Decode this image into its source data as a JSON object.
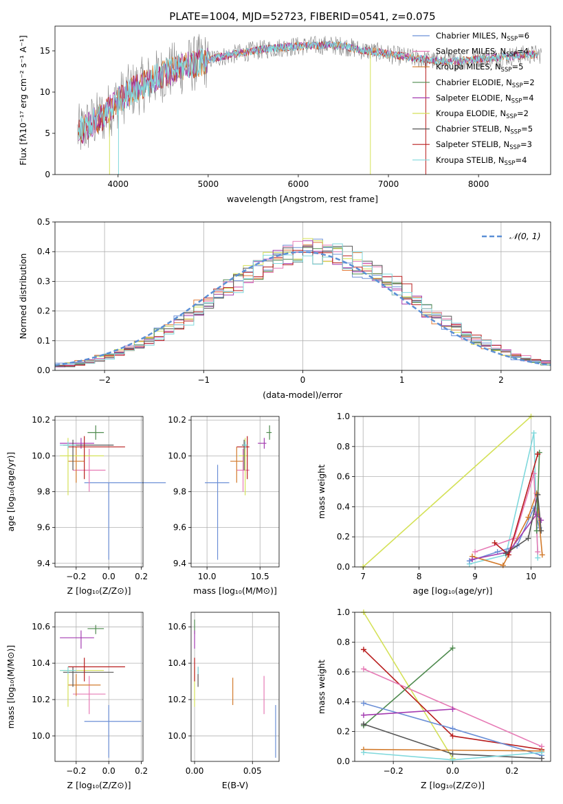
{
  "colors": {
    "chabrier_miles": "#6b8fd6",
    "salpeter_miles": "#e07b39",
    "kroupa_miles": "#d27a2b",
    "chabrier_elodie": "#4e8a4e",
    "salpeter_elodie": "#a33ab0",
    "kroupa_elodie": "#d4e157",
    "chabrier_stelib": "#555555",
    "salpeter_stelib": "#b81c1c",
    "kroupa_stelib": "#7fd8dc",
    "pink": "#e67ab5",
    "dashed_normal": "#5b8fd6"
  },
  "panel1": {
    "title": "PLATE=1004, MJD=52723, FIBERID=0541, z=0.075",
    "xlabel": "wavelength [Angstrom, rest frame]",
    "ylabel": "Flux [fλ10⁻¹⁷ erg cm⁻² s⁻¹ A⁻¹]",
    "xticks": [
      "4000",
      "5000",
      "6000",
      "7000",
      "8000"
    ],
    "yticks": [
      "0",
      "5",
      "10",
      "15"
    ],
    "legend": [
      {
        "label": "Chabrier MILES, N",
        "sub": "SSP",
        "tail": "=6",
        "color_key": "chabrier_miles"
      },
      {
        "label": "Salpeter MILES, N",
        "sub": "SSP",
        "tail": "=4",
        "color_key": "pink"
      },
      {
        "label": "Kroupa MILES, N",
        "sub": "SSP",
        "tail": "=5",
        "color_key": "kroupa_miles"
      },
      {
        "label": "Chabrier ELODIE, N",
        "sub": "SSP",
        "tail": "=2",
        "color_key": "chabrier_elodie"
      },
      {
        "label": "Salpeter ELODIE, N",
        "sub": "SSP",
        "tail": "=4",
        "color_key": "salpeter_elodie"
      },
      {
        "label": "Kroupa ELODIE, N",
        "sub": "SSP",
        "tail": "=2",
        "color_key": "kroupa_elodie"
      },
      {
        "label": "Chabrier STELIB, N",
        "sub": "SSP",
        "tail": "=5",
        "color_key": "chabrier_stelib"
      },
      {
        "label": "Salpeter STELIB, N",
        "sub": "SSP",
        "tail": "=3",
        "color_key": "salpeter_stelib"
      },
      {
        "label": "Kroupa STELIB, N",
        "sub": "SSP",
        "tail": "=4",
        "color_key": "kroupa_stelib"
      }
    ]
  },
  "panel2": {
    "xlabel": "(data-model)/error",
    "ylabel": "Normed distribution",
    "xticks": [
      "−2",
      "−1",
      "0",
      "1",
      "2"
    ],
    "yticks": [
      "0.0",
      "0.1",
      "0.2",
      "0.3",
      "0.4",
      "0.5"
    ],
    "legend_label": "𝒩(0, 1)"
  },
  "panel3": {
    "xlabel": "Z [log₁₀(Z/Z⊙)]",
    "ylabel": "age  [log₁₀(age/yr)]",
    "xticks": [
      "−0.2",
      "0.0",
      "0.2"
    ],
    "yticks": [
      "9.4",
      "9.6",
      "9.8",
      "10.0",
      "10.2"
    ]
  },
  "panel4": {
    "xlabel": "mass [log₁₀(M/M⊙)]",
    "xticks": [
      "10.0",
      "10.5"
    ],
    "yticks": [
      "9.4",
      "9.6",
      "9.8",
      "10.0",
      "10.2"
    ]
  },
  "panel5": {
    "xlabel": "age  [log₁₀(age/yr)]",
    "ylabel": "mass weight",
    "xticks": [
      "7",
      "8",
      "9",
      "10"
    ],
    "yticks": [
      "0.0",
      "0.2",
      "0.4",
      "0.6",
      "0.8",
      "1.0"
    ]
  },
  "panel6": {
    "xlabel": "Z [log₁₀(Z/Z⊙)]",
    "ylabel": "mass [log₁₀(M/M⊙)]",
    "xticks": [
      "−0.2",
      "0.0",
      "0.2"
    ],
    "yticks": [
      "10.0",
      "10.2",
      "10.4",
      "10.6"
    ]
  },
  "panel7": {
    "xlabel": "E(B-V)",
    "xticks": [
      "0.00",
      "0.05"
    ],
    "yticks": [
      "10.0",
      "10.2",
      "10.4",
      "10.6"
    ]
  },
  "panel8": {
    "xlabel": "Z [log₁₀(Z/Z⊙)]",
    "ylabel": "mass weight",
    "xticks": [
      "−0.2",
      "0.0",
      "0.2"
    ],
    "yticks": [
      "0.0",
      "0.2",
      "0.4",
      "0.6",
      "0.8",
      "1.0"
    ]
  },
  "chart_data": [
    {
      "type": "line",
      "title": "PLATE=1004, MJD=52723, FIBERID=0541, z=0.075",
      "xlabel": "wavelength [Angstrom, rest frame]",
      "xlim": [
        3300,
        8800
      ],
      "ylim": [
        0,
        18
      ],
      "grid": false,
      "legend": "top-right",
      "continuum": {
        "x": [
          3550,
          3700,
          3850,
          4000,
          4150,
          4300,
          4500,
          4700,
          4900,
          5100,
          5300,
          5500,
          5700,
          5900,
          6100,
          6300,
          6500,
          6700,
          6900,
          7100,
          7300,
          7500,
          7700,
          7900,
          8100,
          8300,
          8500,
          8700
        ],
        "y": [
          5.0,
          6.2,
          7.2,
          9.0,
          10.2,
          11.0,
          12.2,
          13.0,
          13.6,
          14.2,
          14.6,
          15.0,
          15.3,
          15.5,
          15.6,
          15.7,
          15.6,
          15.1,
          14.8,
          14.4,
          14.1,
          13.8,
          13.7,
          13.9,
          14.1,
          14.3,
          14.5,
          14.6
        ]
      }
    },
    {
      "type": "bar",
      "title": "",
      "xlabel": "(data-model)/error",
      "ylabel": "Normed distribution",
      "xlim": [
        -2.5,
        2.5
      ],
      "ylim": [
        0,
        0.5
      ],
      "grid": true,
      "legend": "top-right",
      "bin_width": 0.1,
      "reference": {
        "name": "𝒩(0, 1)",
        "mean": 0,
        "sigma": 1
      }
    },
    {
      "type": "scatter",
      "xlabel": "Z [log₁₀(Z/Z⊙)]",
      "ylabel": "age  [log₁₀(age/yr)]",
      "xlim": [
        -0.33,
        0.21
      ],
      "ylim": [
        9.38,
        10.22
      ],
      "grid": true,
      "points": [
        {
          "color_key": "chabrier_miles",
          "x": 0.0,
          "xerr": [
            0.15,
            0.35
          ],
          "y": 9.85,
          "yerr": [
            0.43,
            0.0
          ]
        },
        {
          "color_key": "pink",
          "x": -0.12,
          "xerr": [
            0.1,
            0.1
          ],
          "y": 9.92,
          "yerr": [
            0.12,
            0.12
          ]
        },
        {
          "color_key": "kroupa_miles",
          "x": -0.2,
          "xerr": [
            0.05,
            0.05
          ],
          "y": 9.97,
          "yerr": [
            0.12,
            0.08
          ]
        },
        {
          "color_key": "chabrier_elodie",
          "x": -0.08,
          "xerr": [
            0.05,
            0.05
          ],
          "y": 10.13,
          "yerr": [
            0.04,
            0.04
          ]
        },
        {
          "color_key": "salpeter_elodie",
          "x": -0.17,
          "xerr": [
            0.13,
            0.08
          ],
          "y": 10.07,
          "yerr": [
            0.03,
            0.03
          ]
        },
        {
          "color_key": "kroupa_elodie",
          "x": -0.25,
          "xerr": [
            0.05,
            0.22
          ],
          "y": 10.0,
          "yerr": [
            0.22,
            0.1
          ]
        },
        {
          "color_key": "chabrier_stelib",
          "x": -0.22,
          "xerr": [
            0.06,
            0.25
          ],
          "y": 10.06,
          "yerr": [
            0.14,
            0.03
          ]
        },
        {
          "color_key": "salpeter_stelib",
          "x": -0.15,
          "xerr": [
            0.1,
            0.25
          ],
          "y": 10.05,
          "yerr": [
            0.18,
            0.06
          ]
        },
        {
          "color_key": "kroupa_stelib",
          "x": -0.25,
          "xerr": [
            0.05,
            0.05
          ],
          "y": 10.06,
          "yerr": [
            0.02,
            0.02
          ]
        }
      ]
    },
    {
      "type": "scatter",
      "xlabel": "mass [log₁₀(M/M⊙)]",
      "xlim": [
        9.85,
        10.68
      ],
      "ylim": [
        9.38,
        10.22
      ],
      "grid": true,
      "points": [
        {
          "color_key": "chabrier_miles",
          "x": 10.1,
          "xerr": [
            0.12,
            0.11
          ],
          "y": 9.85,
          "yerr": [
            0.43,
            0.1
          ]
        },
        {
          "color_key": "pink",
          "x": 10.34,
          "xerr": [
            0.06,
            0.06
          ],
          "y": 9.92,
          "yerr": [
            0.12,
            0.12
          ]
        },
        {
          "color_key": "kroupa_miles",
          "x": 10.28,
          "xerr": [
            0.06,
            0.06
          ],
          "y": 9.97,
          "yerr": [
            0.12,
            0.08
          ]
        },
        {
          "color_key": "chabrier_elodie",
          "x": 10.59,
          "xerr": [
            0.03,
            0.02
          ],
          "y": 10.13,
          "yerr": [
            0.04,
            0.04
          ]
        },
        {
          "color_key": "salpeter_elodie",
          "x": 10.54,
          "xerr": [
            0.06,
            0.02
          ],
          "y": 10.07,
          "yerr": [
            0.03,
            0.03
          ]
        },
        {
          "color_key": "kroupa_elodie",
          "x": 10.36,
          "xerr": [
            0.06,
            0.02
          ],
          "y": 10.0,
          "yerr": [
            0.22,
            0.1
          ]
        },
        {
          "color_key": "chabrier_stelib",
          "x": 10.35,
          "xerr": [
            0.02,
            0.03
          ],
          "y": 10.06,
          "yerr": [
            0.14,
            0.03
          ]
        },
        {
          "color_key": "salpeter_stelib",
          "x": 10.38,
          "xerr": [
            0.1,
            0.02
          ],
          "y": 10.05,
          "yerr": [
            0.18,
            0.06
          ]
        },
        {
          "color_key": "kroupa_stelib",
          "x": 10.36,
          "xerr": [
            0.02,
            0.02
          ],
          "y": 10.06,
          "yerr": [
            0.02,
            0.02
          ]
        }
      ]
    },
    {
      "type": "line",
      "xlabel": "age  [log₁₀(age/yr)]",
      "ylabel": "mass weight",
      "xlim": [
        6.85,
        10.35
      ],
      "ylim": [
        0,
        1
      ],
      "grid": true,
      "series": [
        {
          "color_key": "kroupa_elodie",
          "x": [
            7.0,
            10.0
          ],
          "y": [
            0.0,
            1.0
          ]
        },
        {
          "color_key": "kroupa_stelib",
          "x": [
            8.9,
            9.55,
            10.05,
            10.12
          ],
          "y": [
            0.02,
            0.08,
            0.89,
            0.06
          ]
        },
        {
          "color_key": "chabrier_miles",
          "x": [
            8.9,
            9.4,
            9.75,
            10.05,
            10.15
          ],
          "y": [
            0.04,
            0.1,
            0.14,
            0.39,
            0.26
          ]
        },
        {
          "color_key": "kroupa_miles",
          "x": [
            8.95,
            9.5,
            9.95,
            10.1,
            10.2
          ],
          "y": [
            0.07,
            0.01,
            0.33,
            0.49,
            0.08
          ]
        },
        {
          "color_key": "pink",
          "x": [
            9.0,
            9.7,
            10.05,
            10.12
          ],
          "y": [
            0.1,
            0.19,
            0.62,
            0.1
          ]
        },
        {
          "color_key": "salpeter_elodie",
          "x": [
            8.95,
            9.6,
            10.1,
            10.18
          ],
          "y": [
            0.05,
            0.1,
            0.35,
            0.31
          ]
        },
        {
          "color_key": "chabrier_elodie",
          "x": [
            10.1,
            10.15
          ],
          "y": [
            0.24,
            0.76
          ]
        },
        {
          "color_key": "salpeter_stelib",
          "x": [
            9.35,
            9.6,
            10.12
          ],
          "y": [
            0.16,
            0.08,
            0.75
          ]
        },
        {
          "color_key": "chabrier_stelib",
          "x": [
            9.55,
            9.95,
            10.12,
            10.18
          ],
          "y": [
            0.09,
            0.19,
            0.48,
            0.24
          ]
        }
      ]
    },
    {
      "type": "scatter",
      "xlabel": "Z [log₁₀(Z/Z⊙)]",
      "ylabel": "mass [log₁₀(M/M⊙)]",
      "xlim": [
        -0.33,
        0.21
      ],
      "ylim": [
        9.86,
        10.68
      ],
      "grid": true,
      "points": [
        {
          "color_key": "chabrier_miles",
          "x": 0.0,
          "xerr": [
            0.15,
            0.2
          ],
          "y": 10.08,
          "yerr": [
            0.2,
            0.09
          ]
        },
        {
          "color_key": "pink",
          "x": -0.12,
          "xerr": [
            0.1,
            0.1
          ],
          "y": 10.23,
          "yerr": [
            0.11,
            0.1
          ]
        },
        {
          "color_key": "kroupa_miles",
          "x": -0.2,
          "xerr": [
            0.05,
            0.15
          ],
          "y": 10.28,
          "yerr": [
            0.06,
            0.06
          ]
        },
        {
          "color_key": "chabrier_elodie",
          "x": -0.08,
          "xerr": [
            0.05,
            0.05
          ],
          "y": 10.59,
          "yerr": [
            0.03,
            0.02
          ]
        },
        {
          "color_key": "salpeter_elodie",
          "x": -0.17,
          "xerr": [
            0.13,
            0.08
          ],
          "y": 10.54,
          "yerr": [
            0.06,
            0.04
          ]
        },
        {
          "color_key": "kroupa_elodie",
          "x": -0.25,
          "xerr": [
            0.05,
            0.22
          ],
          "y": 10.36,
          "yerr": [
            0.2,
            0.02
          ]
        },
        {
          "color_key": "chabrier_stelib",
          "x": -0.22,
          "xerr": [
            0.06,
            0.25
          ],
          "y": 10.35,
          "yerr": [
            0.08,
            0.03
          ]
        },
        {
          "color_key": "salpeter_stelib",
          "x": -0.15,
          "xerr": [
            0.1,
            0.25
          ],
          "y": 10.38,
          "yerr": [
            0.08,
            0.05
          ]
        },
        {
          "color_key": "kroupa_stelib",
          "x": -0.25,
          "xerr": [
            0.05,
            0.05
          ],
          "y": 10.36,
          "yerr": [
            0.02,
            0.02
          ]
        }
      ]
    },
    {
      "type": "scatter",
      "xlabel": "E(B-V)",
      "xlim": [
        -0.003,
        0.073
      ],
      "ylim": [
        9.86,
        10.68
      ],
      "grid": true,
      "points": [
        {
          "color_key": "chabrier_miles",
          "x": 0.07,
          "y": 10.08,
          "yerr": [
            0.2,
            0.09
          ]
        },
        {
          "color_key": "pink",
          "x": 0.06,
          "y": 10.23,
          "yerr": [
            0.11,
            0.1
          ]
        },
        {
          "color_key": "kroupa_miles",
          "x": 0.033,
          "y": 10.23,
          "yerr": [
            0.06,
            0.09
          ]
        },
        {
          "color_key": "chabrier_elodie",
          "x": 0.0,
          "y": 10.59,
          "yerr": [
            0.03,
            0.05
          ]
        },
        {
          "color_key": "salpeter_elodie",
          "x": 0.0,
          "y": 10.54,
          "yerr": [
            0.06,
            0.04
          ]
        },
        {
          "color_key": "kroupa_elodie",
          "x": 0.0,
          "y": 10.36,
          "yerr": [
            0.2,
            0.02
          ]
        },
        {
          "color_key": "chabrier_stelib",
          "x": 0.003,
          "y": 10.35,
          "yerr": [
            0.08,
            0.03
          ]
        },
        {
          "color_key": "salpeter_stelib",
          "x": 0.0,
          "y": 10.38,
          "yerr": [
            0.08,
            0.05
          ]
        },
        {
          "color_key": "kroupa_stelib",
          "x": 0.003,
          "y": 10.36,
          "yerr": [
            0.02,
            0.02
          ]
        }
      ]
    },
    {
      "type": "line",
      "xlabel": "Z [log₁₀(Z/Z⊙)]",
      "ylabel": "mass weight",
      "xlim": [
        -0.33,
        0.33
      ],
      "ylim": [
        0,
        1
      ],
      "grid": true,
      "series": [
        {
          "color_key": "kroupa_elodie",
          "x": [
            -0.3,
            0.0
          ],
          "y": [
            1.0,
            0.02
          ]
        },
        {
          "color_key": "salpeter_stelib",
          "x": [
            -0.3,
            0.0,
            0.3
          ],
          "y": [
            0.75,
            0.17,
            0.08
          ]
        },
        {
          "color_key": "pink",
          "x": [
            -0.3,
            0.3
          ],
          "y": [
            0.62,
            0.1
          ]
        },
        {
          "color_key": "chabrier_elodie",
          "x": [
            -0.3,
            0.0
          ],
          "y": [
            0.24,
            0.76
          ]
        },
        {
          "color_key": "chabrier_miles",
          "x": [
            -0.3,
            0.0,
            0.3
          ],
          "y": [
            0.39,
            0.22,
            0.04
          ]
        },
        {
          "color_key": "salpeter_elodie",
          "x": [
            -0.3,
            0.0
          ],
          "y": [
            0.31,
            0.35
          ]
        },
        {
          "color_key": "chabrier_stelib",
          "x": [
            -0.3,
            0.0,
            0.3
          ],
          "y": [
            0.25,
            0.05,
            0.02
          ]
        },
        {
          "color_key": "kroupa_miles",
          "x": [
            -0.3,
            0.3
          ],
          "y": [
            0.08,
            0.07
          ]
        },
        {
          "color_key": "kroupa_stelib",
          "x": [
            -0.3,
            0.0,
            0.3
          ],
          "y": [
            0.06,
            0.01,
            0.06
          ]
        }
      ]
    }
  ]
}
